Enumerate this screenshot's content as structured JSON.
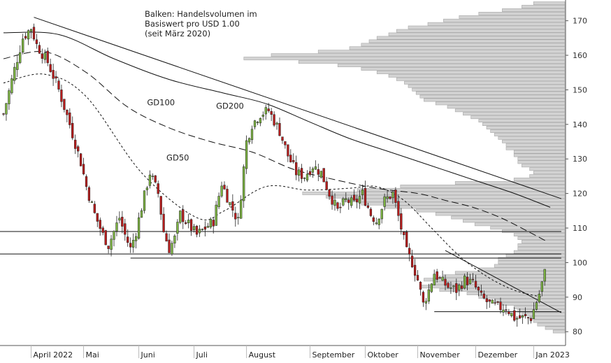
{
  "note": {
    "lines": [
      "Balken: Handelsvolumen im",
      "Basiswert pro USD 1.00",
      "(seit März 2020)"
    ]
  },
  "chart_data": {
    "type": "candlestick",
    "title": "",
    "xlabel": "",
    "ylabel": "",
    "ylim": [
      76,
      176
    ],
    "y_ticks": [
      80,
      90,
      100,
      110,
      120,
      130,
      140,
      150,
      160,
      170
    ],
    "x_ticks": [
      {
        "label": "April 2022",
        "trading_day": 10
      },
      {
        "label": "Mai",
        "trading_day": 29
      },
      {
        "label": "Juni",
        "trading_day": 49
      },
      {
        "label": "Juli",
        "trading_day": 69
      },
      {
        "label": "August",
        "trading_day": 88
      },
      {
        "label": "September",
        "trading_day": 111
      },
      {
        "label": "Oktober",
        "trading_day": 131
      },
      {
        "label": "November",
        "trading_day": 150
      },
      {
        "label": "Dezember",
        "trading_day": 171
      },
      {
        "label": "Jan 2023",
        "trading_day": 192
      }
    ],
    "series_labels": [
      {
        "name": "GD50",
        "trading_day": 59,
        "y": 129.5
      },
      {
        "name": "GD100",
        "trading_day": 52,
        "y": 145.5
      },
      {
        "name": "GD200",
        "trading_day": 77,
        "y": 144.5
      }
    ],
    "anchors": {
      "days": [
        0,
        4,
        7,
        10,
        12,
        16,
        20,
        24,
        28,
        30,
        33,
        36,
        38,
        40,
        42,
        44,
        46,
        48,
        50,
        53,
        56,
        58,
        60,
        62,
        64,
        66,
        70,
        73,
        76,
        79,
        82,
        85,
        88,
        90,
        93,
        96,
        100,
        103,
        106,
        109,
        112,
        115,
        118,
        121,
        124,
        127,
        130,
        133,
        135,
        138,
        141,
        144,
        146,
        148,
        150,
        152,
        154,
        156,
        158,
        161,
        164,
        167,
        170,
        173,
        176,
        179,
        182,
        185,
        188,
        191,
        194,
        196
      ],
      "closes": [
        143,
        156,
        165,
        168,
        163,
        158,
        150,
        140,
        129,
        122,
        114,
        108,
        105,
        109,
        113,
        108,
        104,
        109,
        116,
        126,
        120,
        109,
        104,
        107,
        114,
        112,
        108,
        110,
        112,
        123,
        117,
        112,
        135,
        140,
        143,
        144,
        138,
        131,
        126,
        125,
        128,
        126,
        120,
        115,
        118,
        117,
        120,
        114,
        112,
        118,
        120,
        110,
        103,
        100,
        95,
        88,
        92,
        97,
        95,
        93,
        92,
        95,
        94,
        90,
        88,
        87,
        87,
        84,
        84,
        84,
        91,
        97
      ]
    },
    "moving_averages": [
      {
        "name": "GD50",
        "dash": "short",
        "days": [
          0,
          15,
          30,
          50,
          70,
          80,
          95,
          110,
          125,
          135,
          145,
          155,
          165,
          175,
          185,
          195
        ],
        "values": [
          152,
          154.5,
          148,
          126,
          113,
          115,
          122,
          121,
          121.5,
          122,
          118,
          110,
          102,
          96,
          92,
          90
        ]
      },
      {
        "name": "GD100",
        "dash": "long",
        "days": [
          0,
          15,
          30,
          45,
          60,
          75,
          90,
          105,
          120,
          135,
          150,
          160,
          170,
          180,
          190,
          197
        ],
        "values": [
          159,
          161,
          155,
          145,
          139,
          135,
          132,
          127,
          124,
          121.5,
          120,
          118,
          116,
          113,
          109,
          106
        ]
      },
      {
        "name": "GD200",
        "dash": "solid",
        "days": [
          0,
          20,
          40,
          60,
          80,
          95,
          110,
          125,
          140,
          155,
          170,
          185,
          198
        ],
        "values": [
          166.5,
          166,
          159,
          153,
          149,
          146,
          141,
          136,
          132,
          128,
          124,
          120,
          116
        ]
      }
    ],
    "trend_lines": [
      {
        "name": "downtrend-main",
        "from": {
          "trading_day": 11,
          "y": 171
        },
        "to": {
          "trading_day": 202,
          "y": 118.5
        }
      },
      {
        "name": "downtrend-short",
        "from": {
          "trading_day": 160,
          "y": 103.5
        },
        "to": {
          "trading_day": 202,
          "y": 85.5
        }
      }
    ],
    "support_lines": [
      {
        "y": 109,
        "from": 0,
        "to": 202
      },
      {
        "y": 102.5,
        "from": 0,
        "to": 202
      },
      {
        "y": 101.3,
        "from": 46,
        "to": 202
      },
      {
        "y": 85.8,
        "from": 156,
        "to": 202
      }
    ],
    "volume_profile": {
      "bin_size": 1,
      "bins": [
        {
          "price": 80,
          "volume": 0.03
        },
        {
          "price": 81,
          "volume": 0.05
        },
        {
          "price": 82,
          "volume": 0.07
        },
        {
          "price": 83,
          "volume": 0.08
        },
        {
          "price": 84,
          "volume": 0.09
        },
        {
          "price": 85,
          "volume": 0.11
        },
        {
          "price": 86,
          "volume": 0.12
        },
        {
          "price": 87,
          "volume": 0.13
        },
        {
          "price": 88,
          "volume": 0.16
        },
        {
          "price": 89,
          "volume": 0.18
        },
        {
          "price": 90,
          "volume": 0.22
        },
        {
          "price": 91,
          "volume": 0.25
        },
        {
          "price": 92,
          "volume": 0.32
        },
        {
          "price": 93,
          "volume": 0.37
        },
        {
          "price": 94,
          "volume": 0.33
        },
        {
          "price": 95,
          "volume": 0.36
        },
        {
          "price": 96,
          "volume": 0.31
        },
        {
          "price": 97,
          "volume": 0.28
        },
        {
          "price": 98,
          "volume": 0.22
        },
        {
          "price": 99,
          "volume": 0.18
        },
        {
          "price": 100,
          "volume": 0.17
        },
        {
          "price": 101,
          "volume": 0.17
        },
        {
          "price": 102,
          "volume": 0.15
        },
        {
          "price": 103,
          "volume": 0.13
        },
        {
          "price": 104,
          "volume": 0.12
        },
        {
          "price": 105,
          "volume": 0.12
        },
        {
          "price": 106,
          "volume": 0.11
        },
        {
          "price": 107,
          "volume": 0.12
        },
        {
          "price": 108,
          "volume": 0.13
        },
        {
          "price": 109,
          "volume": 0.16
        },
        {
          "price": 110,
          "volume": 0.19
        },
        {
          "price": 111,
          "volume": 0.23
        },
        {
          "price": 112,
          "volume": 0.26
        },
        {
          "price": 113,
          "volume": 0.29
        },
        {
          "price": 114,
          "volume": 0.33
        },
        {
          "price": 115,
          "volume": 0.38
        },
        {
          "price": 116,
          "volume": 0.46
        },
        {
          "price": 117,
          "volume": 0.52
        },
        {
          "price": 118,
          "volume": 0.57
        },
        {
          "price": 119,
          "volume": 0.61
        },
        {
          "price": 120,
          "volume": 0.67
        },
        {
          "price": 121,
          "volume": 0.53
        },
        {
          "price": 122,
          "volume": 0.42
        },
        {
          "price": 123,
          "volume": 0.28
        },
        {
          "price": 124,
          "volume": 0.13
        },
        {
          "price": 125,
          "volume": 0.09
        },
        {
          "price": 126,
          "volume": 0.08
        },
        {
          "price": 127,
          "volume": 0.09
        },
        {
          "price": 128,
          "volume": 0.11
        },
        {
          "price": 129,
          "volume": 0.12
        },
        {
          "price": 130,
          "volume": 0.12
        },
        {
          "price": 131,
          "volume": 0.13
        },
        {
          "price": 132,
          "volume": 0.13
        },
        {
          "price": 133,
          "volume": 0.15
        },
        {
          "price": 134,
          "volume": 0.15
        },
        {
          "price": 135,
          "volume": 0.16
        },
        {
          "price": 136,
          "volume": 0.17
        },
        {
          "price": 137,
          "volume": 0.18
        },
        {
          "price": 138,
          "volume": 0.19
        },
        {
          "price": 139,
          "volume": 0.2
        },
        {
          "price": 140,
          "volume": 0.21
        },
        {
          "price": 141,
          "volume": 0.22
        },
        {
          "price": 142,
          "volume": 0.24
        },
        {
          "price": 143,
          "volume": 0.26
        },
        {
          "price": 144,
          "volume": 0.28
        },
        {
          "price": 145,
          "volume": 0.3
        },
        {
          "price": 146,
          "volume": 0.33
        },
        {
          "price": 147,
          "volume": 0.36
        },
        {
          "price": 148,
          "volume": 0.37
        },
        {
          "price": 149,
          "volume": 0.38
        },
        {
          "price": 150,
          "volume": 0.39
        },
        {
          "price": 151,
          "volume": 0.4
        },
        {
          "price": 152,
          "volume": 0.41
        },
        {
          "price": 153,
          "volume": 0.43
        },
        {
          "price": 154,
          "volume": 0.45
        },
        {
          "price": 155,
          "volume": 0.48
        },
        {
          "price": 156,
          "volume": 0.52
        },
        {
          "price": 157,
          "volume": 0.58
        },
        {
          "price": 158,
          "volume": 0.68
        },
        {
          "price": 159,
          "volume": 0.82
        },
        {
          "price": 160,
          "volume": 0.75
        },
        {
          "price": 161,
          "volume": 0.63
        },
        {
          "price": 162,
          "volume": 0.55
        },
        {
          "price": 163,
          "volume": 0.52
        },
        {
          "price": 164,
          "volume": 0.5
        },
        {
          "price": 165,
          "volume": 0.48
        },
        {
          "price": 166,
          "volume": 0.45
        },
        {
          "price": 167,
          "volume": 0.43
        },
        {
          "price": 168,
          "volume": 0.4
        },
        {
          "price": 169,
          "volume": 0.35
        },
        {
          "price": 170,
          "volume": 0.31
        },
        {
          "price": 171,
          "volume": 0.27
        },
        {
          "price": 172,
          "volume": 0.22
        },
        {
          "price": 173,
          "volume": 0.16
        },
        {
          "price": 174,
          "volume": 0.11
        },
        {
          "price": 175,
          "volume": 0.08
        }
      ]
    },
    "colors": {
      "bullish": "#7cb342",
      "bearish": "#b71c1c",
      "volume_fill": "#d3d3d3",
      "volume_stroke": "#a8a8a8",
      "lines": "#111111"
    },
    "legend": "none",
    "grid": false
  }
}
